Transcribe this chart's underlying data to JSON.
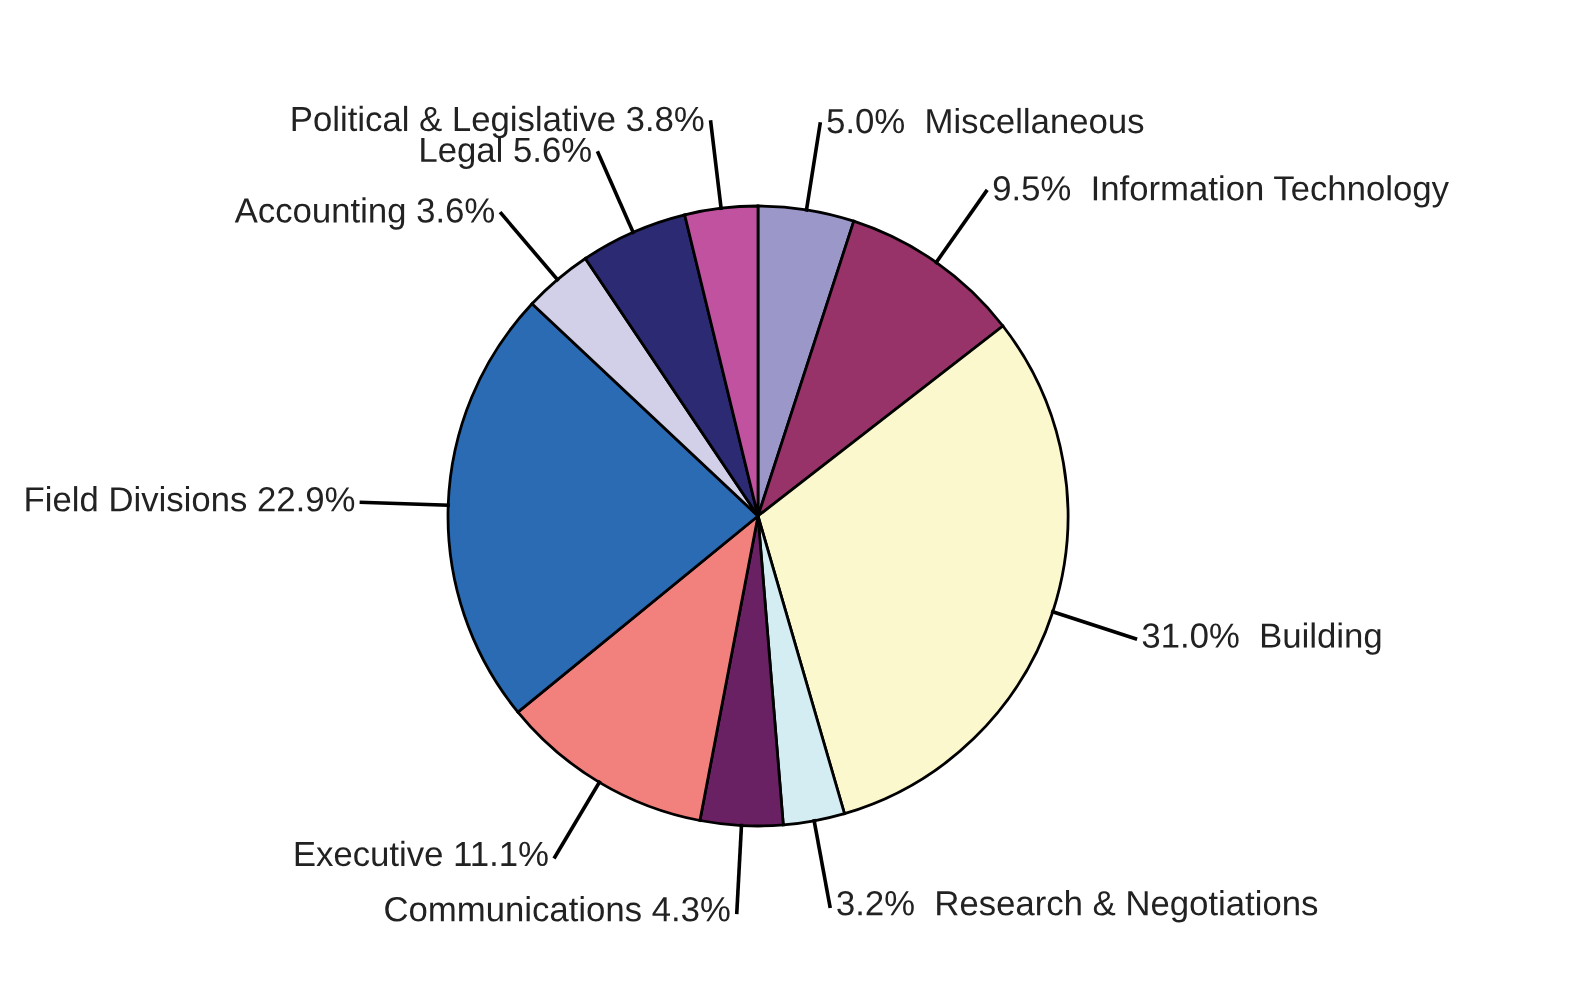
{
  "chart_data": {
    "type": "pie",
    "categories": [
      "Miscellaneous",
      "Information Technology",
      "Building",
      "Research & Negotiations",
      "Communications",
      "Executive",
      "Field Divisions",
      "Accounting",
      "Legal",
      "Political & Legislative"
    ],
    "values": [
      5.0,
      9.5,
      31.0,
      3.2,
      4.3,
      11.1,
      22.9,
      3.6,
      5.6,
      3.8
    ],
    "value_labels": [
      "5.0%",
      "9.5%",
      "31.0%",
      "3.2%",
      "4.3%",
      "11.1%",
      "22.9%",
      "3.6%",
      "5.6%",
      "3.8%"
    ],
    "colors": [
      "#9b97c9",
      "#98336a",
      "#fbf8cd",
      "#d4edf3",
      "#6a2163",
      "#f2807d",
      "#2b6bb3",
      "#d2d0e8",
      "#2b2a72",
      "#c052a0"
    ]
  }
}
